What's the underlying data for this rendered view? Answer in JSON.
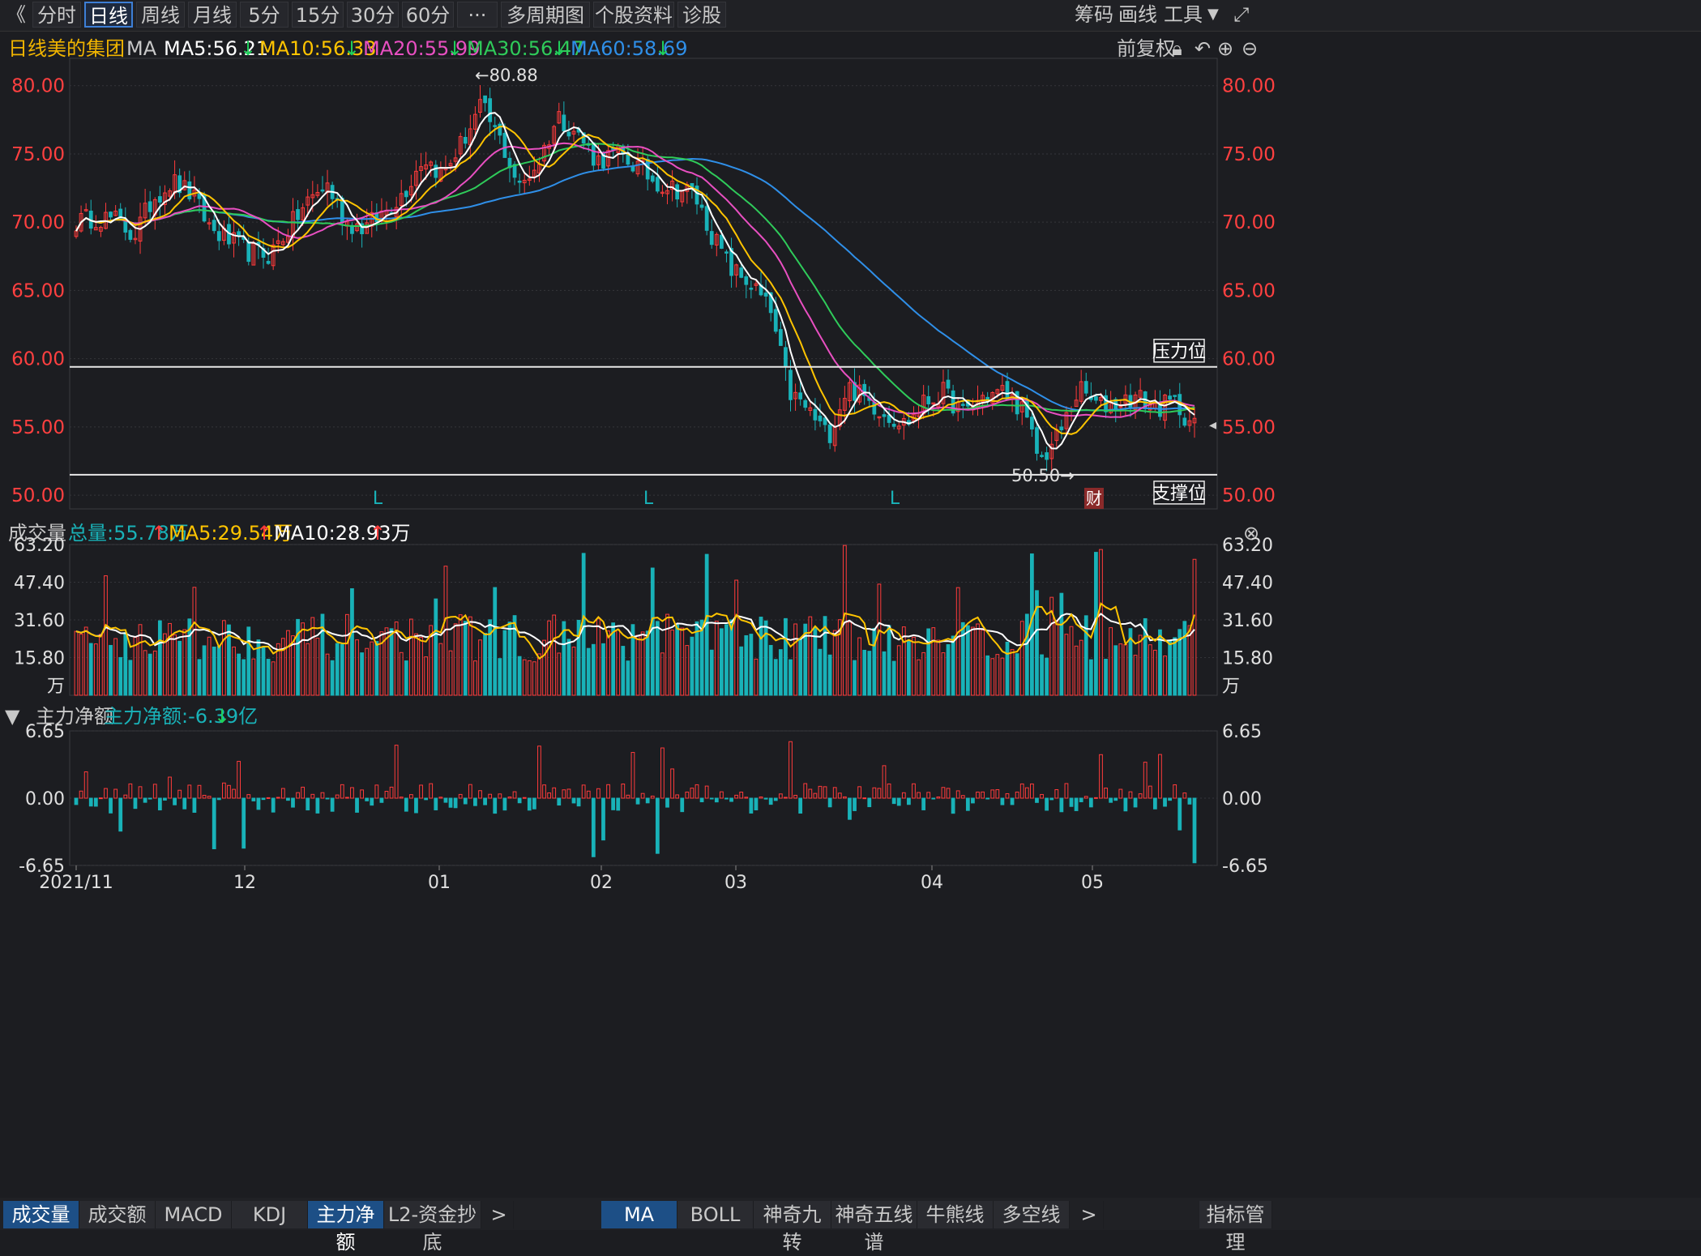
{
  "toolbar": {
    "back_icon": "double-chevron-left-icon",
    "tabs": [
      "分时",
      "日线",
      "周线",
      "月线",
      "5分",
      "15分",
      "30分",
      "60分",
      "···",
      "多周期图",
      "个股资料",
      "诊股"
    ],
    "active_tab": "日线",
    "right": [
      "筹码",
      "画线",
      "工具"
    ]
  },
  "info": {
    "period": "日线",
    "name": "美的集团",
    "indicator": "MA",
    "ma5": "MA5:56.21",
    "ma10": "MA10:56.33",
    "ma20": "MA20:55.99",
    "ma30": "MA30:56.47",
    "ma60": "MA60:58.69",
    "fuquan": "前复权"
  },
  "volume_head": {
    "title": "成交量",
    "total": "总量:55.78万",
    "ma5": "MA5:29.54万",
    "ma10": "MA10:28.93万"
  },
  "flow_head": {
    "title": "主力净额",
    "value": "主力净额:-6.39亿"
  },
  "colors": {
    "up": "#ff3b3b",
    "down": "#19b2b8",
    "ma5": "#ffffff",
    "ma10": "#ffc400",
    "ma20": "#e84fc1",
    "ma30": "#2fcb5a",
    "ma60": "#2f8fe8",
    "bg": "#1c1d21",
    "grid": "#3a3b40"
  },
  "chart_data": [
    {
      "type": "candlestick",
      "price_ticks": [
        "80.00",
        "75.00",
        "70.00",
        "65.00",
        "60.00",
        "55.00",
        "50.00"
      ],
      "ylim": [
        49,
        82
      ],
      "high_label": "←80.88",
      "low_label": "50.50→",
      "resistance": {
        "label": "压力位",
        "value": 59.4
      },
      "support": {
        "label": "支撑位",
        "value": 51.5
      },
      "markers": [
        "L",
        "L",
        "L",
        "财"
      ],
      "x_labels": [
        "2021/11",
        "12",
        "01",
        "02",
        "03",
        "04",
        "05"
      ],
      "anchors": [
        70.0,
        70.4,
        70.2,
        69.0,
        71.8,
        73.0,
        72.0,
        69.5,
        68.6,
        67.8,
        67.6,
        69.5,
        71.5,
        72.8,
        70.0,
        69.6,
        70.8,
        72.2,
        74.8,
        73.5,
        75.8,
        78.5,
        76.0,
        72.5,
        74.5,
        77.8,
        76.5,
        74.5,
        75.0,
        74.2,
        73.0,
        72.5,
        72.2,
        69.0,
        66.5,
        65.5,
        63.5,
        57.5,
        56.2,
        54.3,
        58.0,
        57.0,
        56.0,
        55.2,
        56.8,
        57.5,
        56.0,
        57.2,
        57.6,
        56.5,
        52.5,
        54.5,
        57.8,
        56.5,
        56.8,
        57.2,
        56.4,
        56.8,
        55.0
      ]
    },
    {
      "type": "bar",
      "name": "成交量",
      "ticks": [
        "63.20",
        "47.40",
        "31.60",
        "15.80"
      ],
      "unit": "万",
      "ylim": [
        0,
        63.2
      ]
    },
    {
      "type": "bar",
      "name": "主力净额",
      "ticks": [
        "6.65",
        "0.00",
        "-6.65"
      ],
      "ylim": [
        -6.65,
        6.65
      ]
    }
  ],
  "bottom_tabs_left": [
    "成交量",
    "成交额",
    "MACD",
    "KDJ",
    "主力净额",
    "L2-资金抄底"
  ],
  "bottom_tabs_right": [
    "MA",
    "BOLL",
    "神奇九转",
    "神奇五线谱",
    "牛熊线",
    "多空线"
  ],
  "bottom_right_label": "指标管理"
}
